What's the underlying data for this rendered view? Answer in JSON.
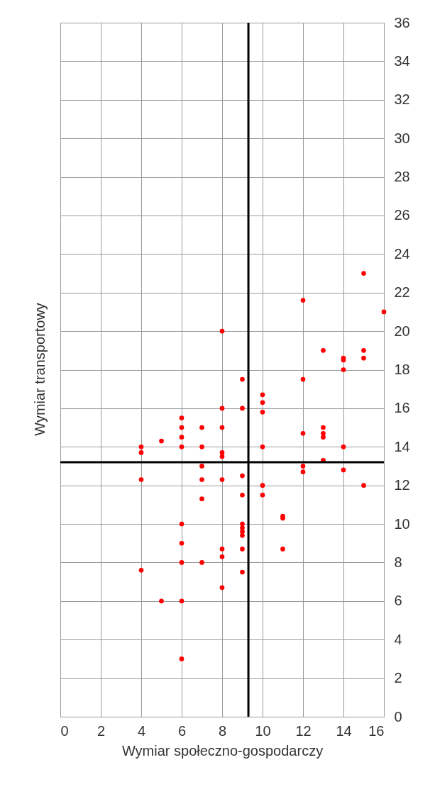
{
  "chart_data": {
    "type": "scatter",
    "xlabel": "Wymiar społeczno-gospodarczy",
    "ylabel": "Wymiar transportowy",
    "x": [
      4,
      4,
      4,
      4,
      5,
      5,
      6,
      6,
      6,
      6,
      6,
      6,
      6,
      6,
      6,
      7,
      7,
      7,
      7,
      7,
      7,
      8,
      8,
      8,
      8,
      8,
      8,
      8,
      8,
      8,
      9,
      9,
      9,
      9,
      9,
      9,
      9,
      9,
      9,
      9,
      10,
      10,
      10,
      10,
      10,
      10,
      11,
      11,
      11,
      12,
      12,
      12,
      12,
      12,
      13,
      13,
      13,
      13,
      13,
      14,
      14,
      14,
      14,
      14,
      15,
      15,
      15,
      15,
      16
    ],
    "series": [
      {
        "color": "#ff0000",
        "values": [
          14,
          13.7,
          12.3,
          7.6,
          14.3,
          6,
          15.5,
          15,
          14.5,
          14,
          10,
          9,
          8,
          6,
          3,
          15,
          14,
          13,
          12.3,
          11.3,
          8,
          20,
          16,
          15,
          13.7,
          13.5,
          12.3,
          8.7,
          8.3,
          6.7,
          17.5,
          16,
          12.5,
          11.5,
          10,
          9.8,
          9.6,
          9.4,
          8.7,
          7.5,
          16.7,
          16.3,
          15.8,
          14,
          12,
          11.5,
          10.4,
          10.3,
          8.7,
          21.6,
          17.5,
          14.7,
          13,
          12.7,
          19,
          15,
          14.7,
          14.5,
          13.3,
          18.6,
          18.5,
          18,
          14,
          12.8,
          23,
          19,
          18.6,
          12,
          21
        ]
      }
    ],
    "xlim": [
      0,
      16
    ],
    "xticks": [
      0,
      2,
      4,
      6,
      8,
      10,
      12,
      14,
      16
    ],
    "ylim": [
      0,
      36
    ],
    "yticks": [
      0,
      2,
      4,
      6,
      8,
      10,
      12,
      14,
      16,
      18,
      20,
      22,
      24,
      26,
      28,
      30,
      32,
      34,
      36
    ],
    "grid": true,
    "marker": "circle",
    "ref_lines": [
      {
        "axis": "x",
        "value": 9.3,
        "color": "#000000"
      },
      {
        "axis": "y",
        "value": 13.2,
        "color": "#000000"
      }
    ]
  }
}
